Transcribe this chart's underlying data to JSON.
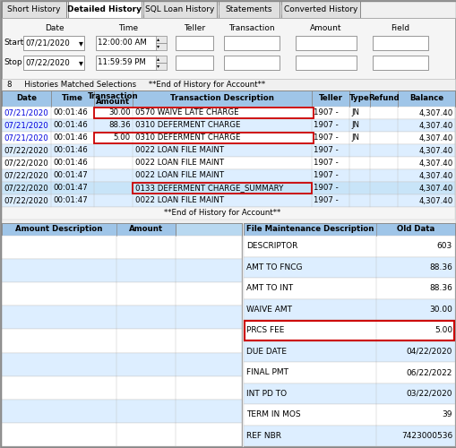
{
  "tabs": [
    "Short History",
    "Detailed History",
    "SQL Loan History",
    "Statements",
    "Converted History"
  ],
  "active_tab": "Detailed History",
  "filter_rows": [
    {
      "label": "Start",
      "date": "07/21/2020",
      "time": "12:00:00 AM"
    },
    {
      "label": "Stop",
      "date": "07/22/2020",
      "time": "11:59:59 PM"
    }
  ],
  "status_line": "8     Histories Matched Selections     **End of History for Account**",
  "main_rows": [
    {
      "date": "07/21/2020",
      "time": "00:01:46",
      "amount": "30.00",
      "desc": "0570 WAIVE LATE CHARGE",
      "teller": "1907 -",
      "type": "JN",
      "balance": "4,307.40",
      "date_blue": true,
      "highlight_amount_desc": true,
      "hl_start": "amount",
      "row_bg": "#ffffff"
    },
    {
      "date": "07/21/2020",
      "time": "00:01:46",
      "amount": "88.36",
      "desc": "0310 DEFERMENT CHARGE",
      "teller": "1907 -",
      "type": "JN",
      "balance": "4,307.40",
      "date_blue": true,
      "highlight_amount_desc": false,
      "row_bg": "#ddeeff"
    },
    {
      "date": "07/21/2020",
      "time": "00:01:46",
      "amount": "5.00",
      "desc": "0310 DEFERMENT CHARGE",
      "teller": "1907 -",
      "type": "JN",
      "balance": "4,307.40",
      "date_blue": true,
      "highlight_amount_desc": true,
      "hl_start": "amount",
      "row_bg": "#ffffff"
    },
    {
      "date": "07/22/2020",
      "time": "00:01:46",
      "amount": "",
      "desc": "0022 LOAN FILE MAINT",
      "teller": "1907 -",
      "type": "",
      "balance": "4,307.40",
      "date_blue": false,
      "highlight_amount_desc": false,
      "row_bg": "#ddeeff"
    },
    {
      "date": "07/22/2020",
      "time": "00:01:46",
      "amount": "",
      "desc": "0022 LOAN FILE MAINT",
      "teller": "1907 -",
      "type": "",
      "balance": "4,307.40",
      "date_blue": false,
      "highlight_amount_desc": false,
      "row_bg": "#ffffff"
    },
    {
      "date": "07/22/2020",
      "time": "00:01:47",
      "amount": "",
      "desc": "0022 LOAN FILE MAINT",
      "teller": "1907 -",
      "type": "",
      "balance": "4,307.40",
      "date_blue": false,
      "highlight_amount_desc": false,
      "row_bg": "#ddeeff"
    },
    {
      "date": "07/22/2020",
      "time": "00:01:47",
      "amount": "",
      "desc": "0133 DEFERMENT CHARGE_SUMMARY",
      "teller": "1907 -",
      "type": "",
      "balance": "4,307.40",
      "date_blue": false,
      "highlight_amount_desc": true,
      "hl_start": "desc",
      "row_bg": "#c8e4f8"
    },
    {
      "date": "07/22/2020",
      "time": "00:01:47",
      "amount": "",
      "desc": "0022 LOAN FILE MAINT",
      "teller": "1907 -",
      "type": "",
      "balance": "4,307.40",
      "date_blue": false,
      "highlight_amount_desc": false,
      "row_bg": "#ddeeff"
    }
  ],
  "end_of_history": "**End of History for Account**",
  "bottom_right_rows": [
    {
      "desc": "DESCRIPTOR",
      "value": "603",
      "highlight": false
    },
    {
      "desc": "AMT TO FNCG",
      "value": "88.36",
      "highlight": false
    },
    {
      "desc": "AMT TO INT",
      "value": "88.36",
      "highlight": false
    },
    {
      "desc": "WAIVE AMT",
      "value": "30.00",
      "highlight": false
    },
    {
      "desc": "PRCS FEE",
      "value": "5.00",
      "highlight": true
    },
    {
      "desc": "DUE DATE",
      "value": "04/22/2020",
      "highlight": false
    },
    {
      "desc": "FINAL PMT",
      "value": "06/22/2022",
      "highlight": false
    },
    {
      "desc": "INT PD TO",
      "value": "03/22/2020",
      "highlight": false
    },
    {
      "desc": "TERM IN MOS",
      "value": "39",
      "highlight": false
    },
    {
      "desc": "REF NBR",
      "value": "7423000536",
      "highlight": false
    }
  ],
  "bg_color": "#f0f0f0",
  "header_bg": "#9fc5e8",
  "tab_active_bg": "#ffffff",
  "tab_inactive_bg": "#e0e0e0",
  "blue_text": "#0000dd",
  "red_border": "#cc0000",
  "text_color": "#000000",
  "col_sep": "#a0a0a0",
  "white": "#ffffff",
  "light_blue_row": "#ddeeff"
}
